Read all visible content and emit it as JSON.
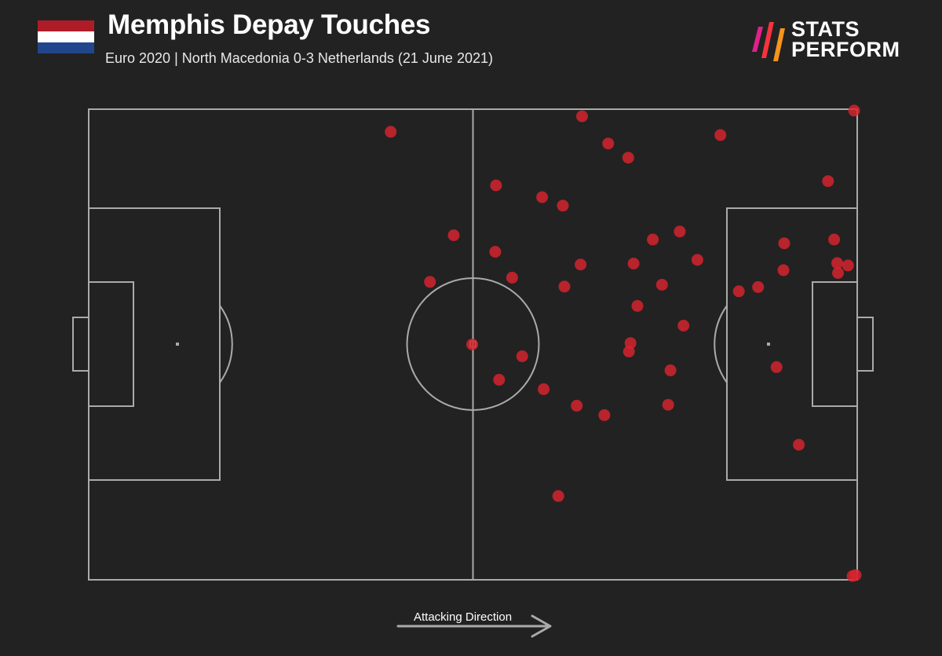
{
  "header": {
    "title": "Memphis Depay Touches",
    "subtitle": "Euro 2020 | North Macedonia 0-3 Netherlands (21 June 2021)",
    "flag_colors": [
      "#AE1C28",
      "#FFFFFF",
      "#21468B"
    ]
  },
  "brand": {
    "line1": "STATS",
    "line2": "PERFORM",
    "mark_colors": [
      "#E0218A",
      "#F5333F",
      "#F7941D"
    ]
  },
  "footer": {
    "direction_label": "Attacking Direction"
  },
  "colors": {
    "background": "#222222",
    "pitch_lines": "#aaaaaa",
    "touch_marker": "#d9232e"
  },
  "chart_data": {
    "type": "scatter",
    "x_range": [
      0,
      100
    ],
    "y_range": [
      0,
      100
    ],
    "points": [
      {
        "x": 39.3,
        "y": 95.2
      },
      {
        "x": 64.2,
        "y": 98.5
      },
      {
        "x": 67.6,
        "y": 92.7
      },
      {
        "x": 70.2,
        "y": 89.7
      },
      {
        "x": 82.2,
        "y": 94.5
      },
      {
        "x": 96.2,
        "y": 84.7
      },
      {
        "x": 99.6,
        "y": 99.7
      },
      {
        "x": 53.0,
        "y": 83.8
      },
      {
        "x": 59.0,
        "y": 81.3
      },
      {
        "x": 61.7,
        "y": 79.5
      },
      {
        "x": 47.5,
        "y": 73.2
      },
      {
        "x": 52.9,
        "y": 69.7
      },
      {
        "x": 73.4,
        "y": 72.3
      },
      {
        "x": 76.9,
        "y": 74.0
      },
      {
        "x": 90.5,
        "y": 71.5
      },
      {
        "x": 97.0,
        "y": 72.3
      },
      {
        "x": 64.0,
        "y": 67.0
      },
      {
        "x": 70.9,
        "y": 67.2
      },
      {
        "x": 79.2,
        "y": 68.0
      },
      {
        "x": 90.4,
        "y": 65.8
      },
      {
        "x": 97.4,
        "y": 67.3
      },
      {
        "x": 98.8,
        "y": 66.8
      },
      {
        "x": 97.5,
        "y": 65.2
      },
      {
        "x": 55.1,
        "y": 64.2
      },
      {
        "x": 44.4,
        "y": 63.3
      },
      {
        "x": 61.9,
        "y": 62.3
      },
      {
        "x": 74.6,
        "y": 62.7
      },
      {
        "x": 84.6,
        "y": 61.3
      },
      {
        "x": 87.1,
        "y": 62.2
      },
      {
        "x": 71.4,
        "y": 58.2
      },
      {
        "x": 77.4,
        "y": 54.0
      },
      {
        "x": 49.9,
        "y": 50.0
      },
      {
        "x": 70.5,
        "y": 50.3
      },
      {
        "x": 70.3,
        "y": 48.5
      },
      {
        "x": 56.4,
        "y": 47.5
      },
      {
        "x": 75.7,
        "y": 44.5
      },
      {
        "x": 89.5,
        "y": 45.2
      },
      {
        "x": 53.4,
        "y": 42.5
      },
      {
        "x": 59.2,
        "y": 40.5
      },
      {
        "x": 63.5,
        "y": 37.0
      },
      {
        "x": 75.4,
        "y": 37.2
      },
      {
        "x": 67.1,
        "y": 35.0
      },
      {
        "x": 92.4,
        "y": 28.7
      },
      {
        "x": 61.1,
        "y": 17.8
      },
      {
        "x": 99.4,
        "y": 0.8
      },
      {
        "x": 99.8,
        "y": 1.0
      }
    ]
  }
}
